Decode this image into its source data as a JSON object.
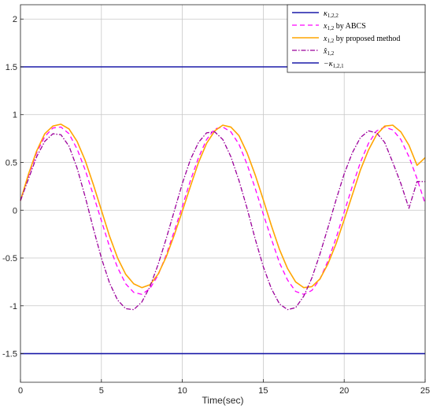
{
  "chart_data": {
    "type": "line",
    "title": "",
    "xlabel": "Time(sec)",
    "ylabel": "",
    "xlim": [
      0,
      25
    ],
    "ylim": [
      -1.8,
      2.15
    ],
    "grid": true,
    "legend_position": "top-right",
    "x_ticks": [
      0,
      5,
      10,
      15,
      20,
      25
    ],
    "x_tick_labels": [
      "0",
      "5",
      "10",
      "15",
      "20",
      "25"
    ],
    "y_ticks": [
      -1.5,
      -1,
      -0.5,
      0,
      0.5,
      1,
      1.5,
      2
    ],
    "y_tick_labels": [
      "-1.5",
      "-1",
      "-0.5",
      "0",
      "0.5",
      "1",
      "1.5",
      "2"
    ],
    "series": [
      {
        "name": "κ1,2,2",
        "legend_main": "κ",
        "legend_sub": "1,2,2",
        "color": "#1a1aa8",
        "style": "solid",
        "x": [
          0,
          25
        ],
        "y": [
          1.5,
          1.5
        ]
      },
      {
        "name": "x1,2 by ABCS",
        "legend_main": "x",
        "legend_sub": "1,2",
        "legend_suffix": " by ABCS",
        "color": "#ff00ff",
        "style": "dashed",
        "x": [
          0,
          0.5,
          1,
          1.5,
          2,
          2.5,
          3,
          3.5,
          4,
          4.5,
          5,
          5.5,
          6,
          6.5,
          7,
          7.5,
          8,
          8.5,
          9,
          9.5,
          10,
          10.5,
          11,
          11.5,
          12,
          12.5,
          13,
          13.5,
          14,
          14.5,
          15,
          15.5,
          16,
          16.5,
          17,
          17.5,
          18,
          18.5,
          19,
          19.5,
          20,
          20.5,
          21,
          21.5,
          22,
          22.5,
          23,
          23.5,
          24,
          24.5,
          25
        ],
        "y": [
          0.1,
          0.36,
          0.6,
          0.77,
          0.86,
          0.87,
          0.8,
          0.64,
          0.42,
          0.16,
          -0.11,
          -0.38,
          -0.6,
          -0.77,
          -0.86,
          -0.88,
          -0.82,
          -0.68,
          -0.47,
          -0.22,
          0.04,
          0.31,
          0.55,
          0.74,
          0.85,
          0.87,
          0.82,
          0.69,
          0.48,
          0.23,
          -0.04,
          -0.3,
          -0.55,
          -0.73,
          -0.85,
          -0.88,
          -0.84,
          -0.72,
          -0.53,
          -0.29,
          -0.02,
          0.25,
          0.5,
          0.7,
          0.83,
          0.87,
          0.84,
          0.74,
          0.56,
          0.33,
          0.07
        ]
      },
      {
        "name": "x1,2 by proposed method",
        "legend_main": "x",
        "legend_sub": "1,2",
        "legend_suffix": " by proposed method",
        "color": "#ffa500",
        "style": "solid",
        "x": [
          0,
          0.5,
          1,
          1.5,
          2,
          2.5,
          3,
          3.5,
          4,
          4.5,
          5,
          5.5,
          6,
          6.5,
          7,
          7.5,
          8,
          8.5,
          9,
          9.5,
          10,
          10.5,
          11,
          11.5,
          12,
          12.5,
          13,
          13.5,
          14,
          14.5,
          15,
          15.5,
          16,
          16.5,
          17,
          17.5,
          18,
          18.5,
          19,
          19.5,
          20,
          20.5,
          21,
          21.5,
          22,
          22.5,
          23,
          23.5,
          24,
          24.5,
          25
        ],
        "y": [
          0.1,
          0.38,
          0.62,
          0.8,
          0.88,
          0.9,
          0.85,
          0.72,
          0.52,
          0.27,
          0.0,
          -0.27,
          -0.5,
          -0.67,
          -0.77,
          -0.81,
          -0.78,
          -0.67,
          -0.49,
          -0.26,
          -0.01,
          0.25,
          0.5,
          0.7,
          0.83,
          0.89,
          0.87,
          0.78,
          0.6,
          0.37,
          0.11,
          -0.16,
          -0.41,
          -0.61,
          -0.75,
          -0.81,
          -0.8,
          -0.72,
          -0.56,
          -0.35,
          -0.1,
          0.16,
          0.42,
          0.63,
          0.79,
          0.88,
          0.89,
          0.82,
          0.68,
          0.47,
          0.55
        ]
      },
      {
        "name": "x̂1,2",
        "legend_main": "x̂",
        "legend_sub": "1,2",
        "color": "#9b009b",
        "style": "dashdot",
        "x": [
          0,
          0.5,
          1,
          1.5,
          2,
          2.5,
          3,
          3.5,
          4,
          4.5,
          5,
          5.5,
          6,
          6.5,
          7,
          7.5,
          8,
          8.5,
          9,
          9.5,
          10,
          10.5,
          11,
          11.5,
          12,
          12.5,
          13,
          13.5,
          14,
          14.5,
          15,
          15.5,
          16,
          16.5,
          17,
          17.5,
          18,
          18.5,
          19,
          19.5,
          20,
          20.5,
          21,
          21.5,
          22,
          22.5,
          23,
          23.5,
          24,
          24.5,
          25
        ],
        "y": [
          0.1,
          0.33,
          0.56,
          0.72,
          0.8,
          0.79,
          0.67,
          0.44,
          0.14,
          -0.19,
          -0.5,
          -0.76,
          -0.94,
          -1.03,
          -1.04,
          -0.96,
          -0.8,
          -0.57,
          -0.3,
          -0.01,
          0.28,
          0.53,
          0.71,
          0.81,
          0.82,
          0.74,
          0.56,
          0.31,
          0.02,
          -0.3,
          -0.59,
          -0.82,
          -0.98,
          -1.04,
          -1.02,
          -0.9,
          -0.71,
          -0.46,
          -0.18,
          0.11,
          0.38,
          0.6,
          0.76,
          0.83,
          0.81,
          0.71,
          0.5,
          0.28,
          0.02,
          0.3,
          0.3
        ]
      },
      {
        "name": "−κ1,2,1",
        "legend_main": "−κ",
        "legend_sub": "1,2,1",
        "color": "#1a1aa8",
        "style": "solid",
        "x": [
          0,
          25
        ],
        "y": [
          -1.5,
          -1.5
        ]
      }
    ]
  }
}
